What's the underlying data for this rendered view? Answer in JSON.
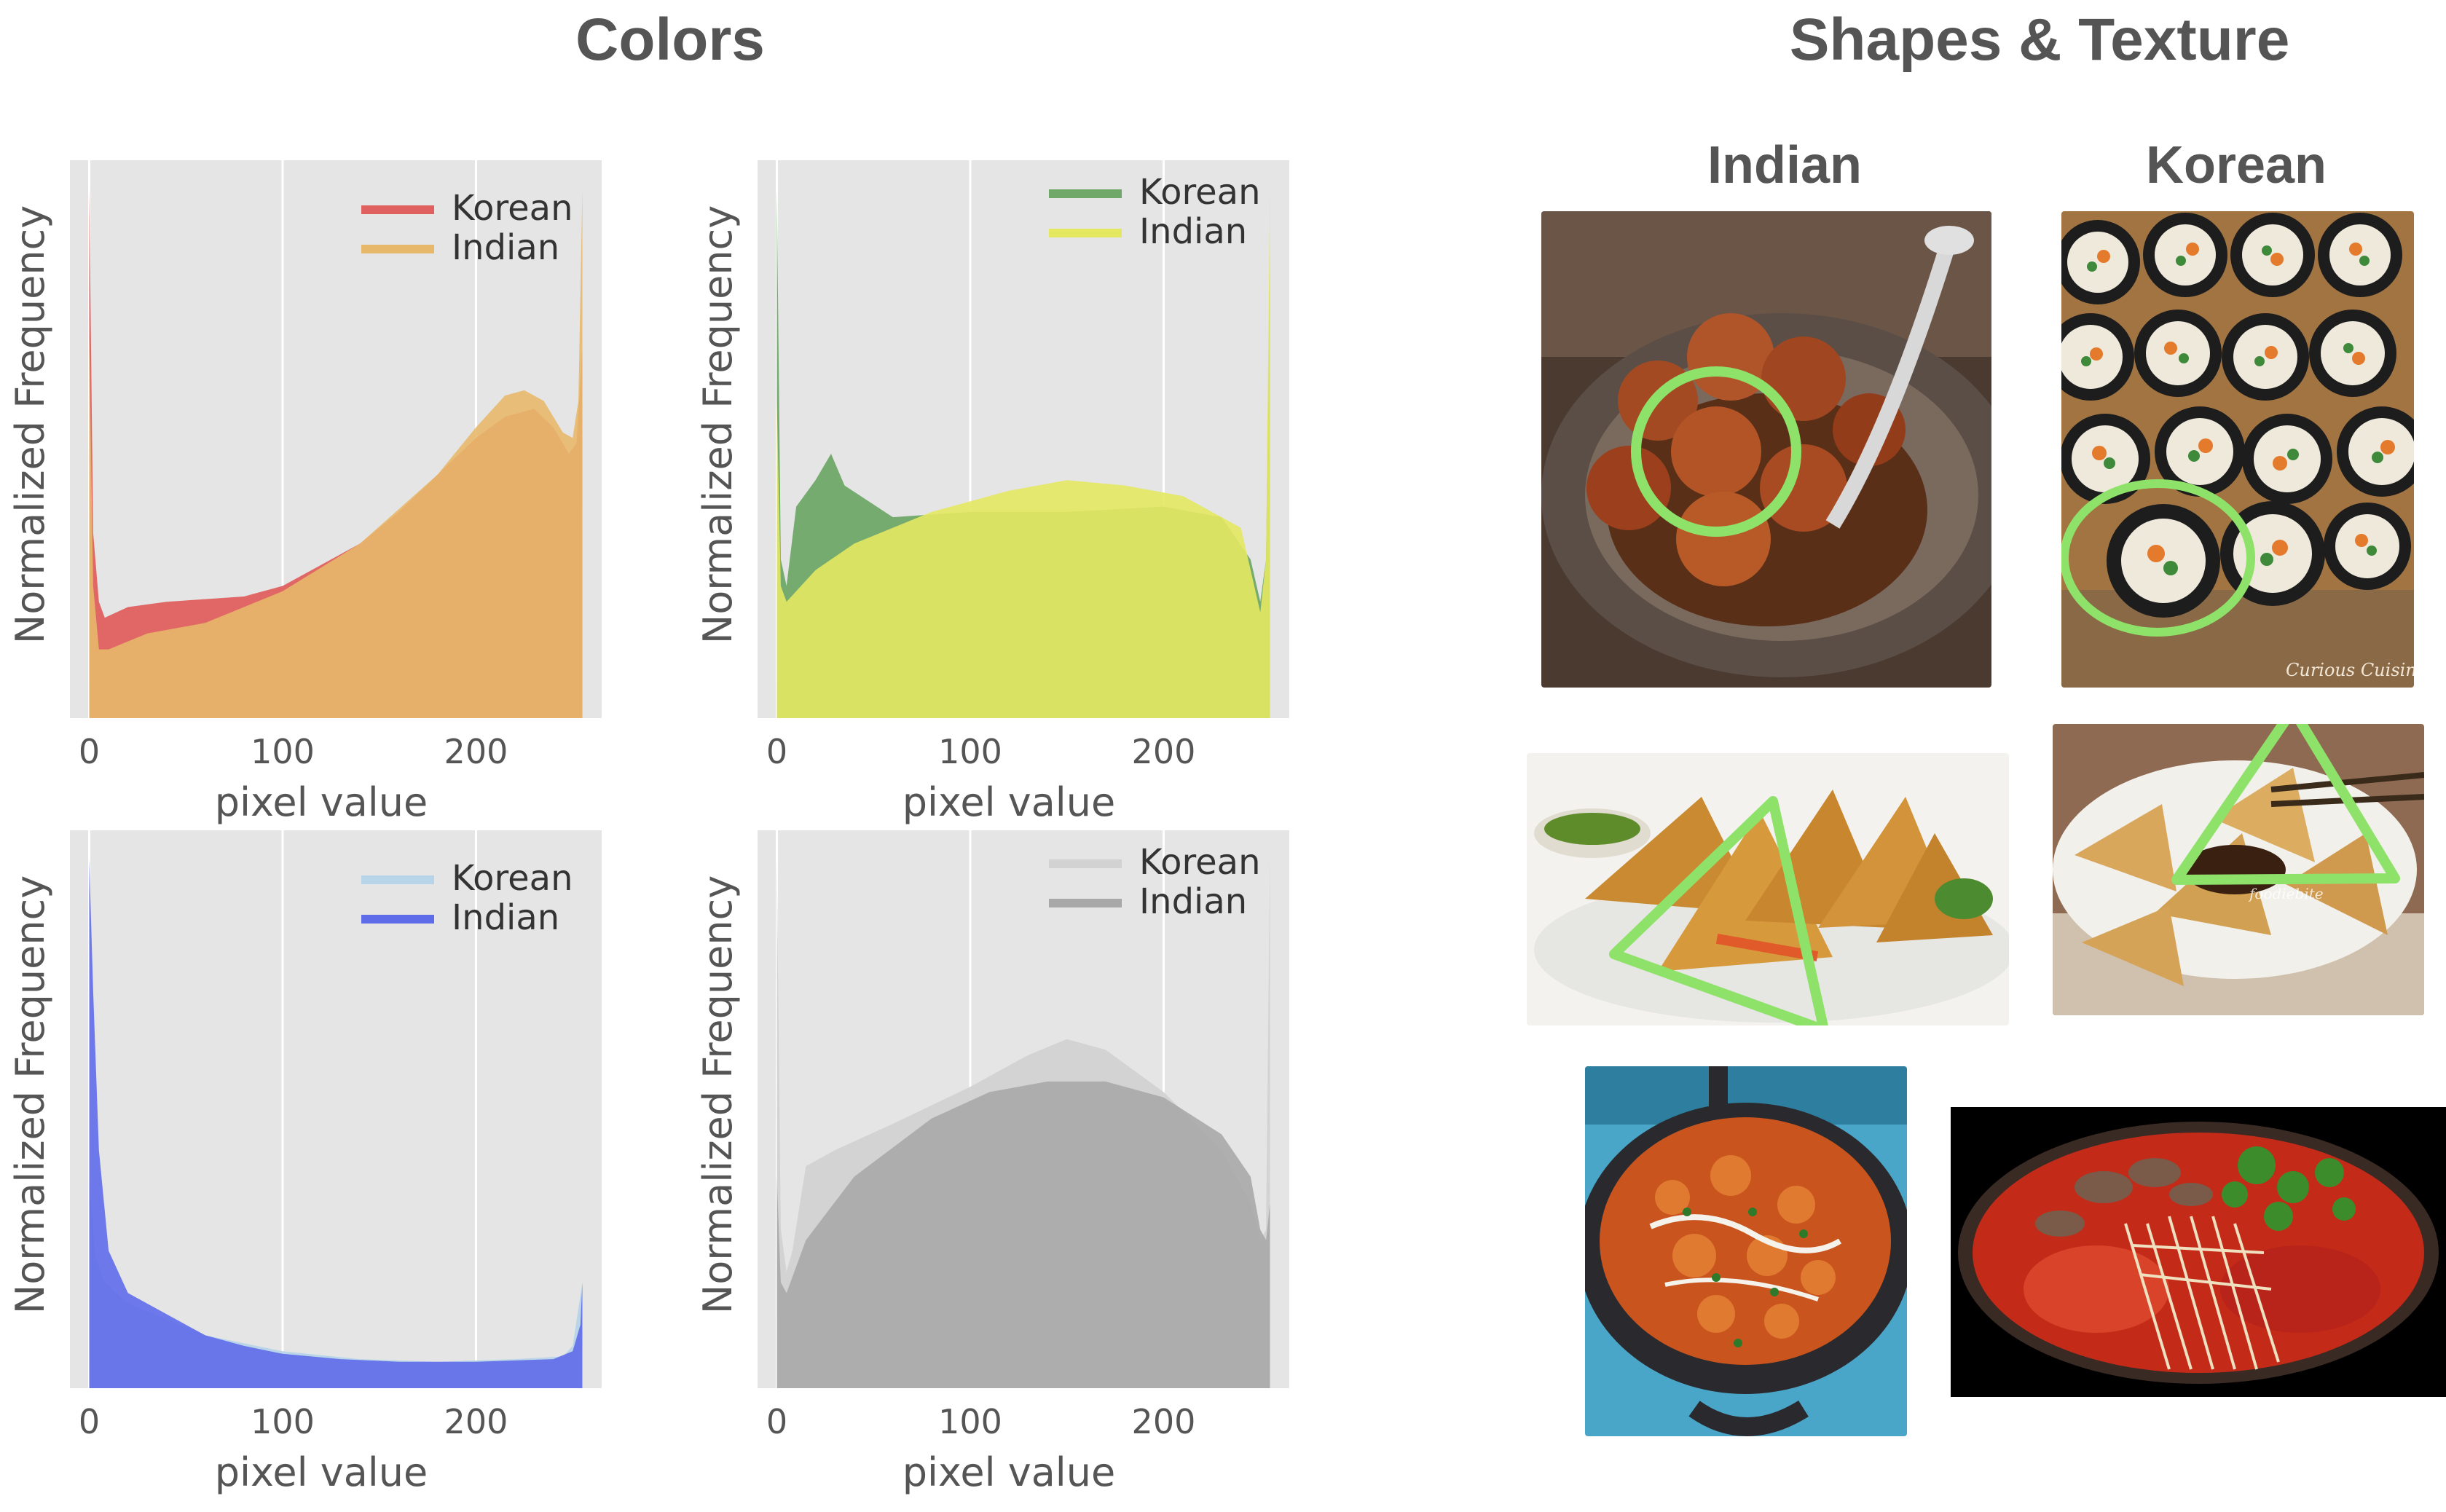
{
  "titles": {
    "colors": "Colors",
    "shapes": "Shapes & Texture",
    "indian": "Indian",
    "korean": "Korean"
  },
  "photo_credits": {
    "kimbap": "Curious Cuisiniere",
    "pajeon": "foodiebite"
  },
  "chart_data": [
    {
      "id": "red",
      "type": "area",
      "xlabel": "pixel value",
      "ylabel": "Normalized Frequency",
      "xlim": [
        -10,
        265
      ],
      "xticks": [
        0,
        100,
        200
      ],
      "grid": true,
      "legend_position": "top-right",
      "series": [
        {
          "name": "Korean",
          "color": "#e06060",
          "points": [
            [
              0,
              1.0
            ],
            [
              2,
              0.35
            ],
            [
              5,
              0.22
            ],
            [
              8,
              0.19
            ],
            [
              20,
              0.21
            ],
            [
              40,
              0.22
            ],
            [
              60,
              0.225
            ],
            [
              80,
              0.23
            ],
            [
              100,
              0.25
            ],
            [
              120,
              0.29
            ],
            [
              140,
              0.33
            ],
            [
              160,
              0.39
            ],
            [
              180,
              0.46
            ],
            [
              200,
              0.53
            ],
            [
              215,
              0.57
            ],
            [
              230,
              0.585
            ],
            [
              240,
              0.55
            ],
            [
              248,
              0.5
            ],
            [
              252,
              0.52
            ],
            [
              255,
              0.7
            ]
          ]
        },
        {
          "name": "Indian",
          "color": "#e8b86a",
          "points": [
            [
              0,
              0.72
            ],
            [
              2,
              0.25
            ],
            [
              5,
              0.13
            ],
            [
              10,
              0.13
            ],
            [
              30,
              0.16
            ],
            [
              60,
              0.18
            ],
            [
              100,
              0.24
            ],
            [
              140,
              0.33
            ],
            [
              180,
              0.46
            ],
            [
              200,
              0.55
            ],
            [
              215,
              0.61
            ],
            [
              225,
              0.62
            ],
            [
              235,
              0.6
            ],
            [
              245,
              0.54
            ],
            [
              250,
              0.53
            ],
            [
              253,
              0.6
            ],
            [
              255,
              1.0
            ]
          ]
        }
      ]
    },
    {
      "id": "green",
      "type": "area",
      "xlabel": "pixel value",
      "ylabel": "Normalized Frequency",
      "xlim": [
        -10,
        265
      ],
      "xticks": [
        0,
        100,
        200
      ],
      "grid": true,
      "legend_position": "top-right",
      "series": [
        {
          "name": "Korean",
          "color": "#6fa868",
          "points": [
            [
              0,
              1.0
            ],
            [
              2,
              0.3
            ],
            [
              5,
              0.25
            ],
            [
              10,
              0.4
            ],
            [
              20,
              0.45
            ],
            [
              28,
              0.5
            ],
            [
              35,
              0.44
            ],
            [
              60,
              0.38
            ],
            [
              100,
              0.39
            ],
            [
              150,
              0.39
            ],
            [
              200,
              0.4
            ],
            [
              230,
              0.38
            ],
            [
              245,
              0.3
            ],
            [
              250,
              0.22
            ],
            [
              253,
              0.3
            ],
            [
              255,
              0.9
            ]
          ]
        },
        {
          "name": "Indian",
          "color": "#e4e860",
          "points": [
            [
              0,
              0.6
            ],
            [
              2,
              0.25
            ],
            [
              5,
              0.22
            ],
            [
              20,
              0.28
            ],
            [
              40,
              0.33
            ],
            [
              80,
              0.39
            ],
            [
              120,
              0.43
            ],
            [
              150,
              0.45
            ],
            [
              180,
              0.44
            ],
            [
              210,
              0.42
            ],
            [
              240,
              0.36
            ],
            [
              250,
              0.2
            ],
            [
              253,
              0.3
            ],
            [
              255,
              1.0
            ]
          ]
        }
      ]
    },
    {
      "id": "blue",
      "type": "area",
      "xlabel": "pixel value",
      "ylabel": "Normalized Frequency",
      "xlim": [
        -10,
        265
      ],
      "xticks": [
        0,
        100,
        200
      ],
      "grid": true,
      "legend_position": "top-right",
      "series": [
        {
          "name": "Korean",
          "color": "#b8d4e8",
          "points": [
            [
              0,
              0.4
            ],
            [
              3,
              0.25
            ],
            [
              8,
              0.2
            ],
            [
              20,
              0.16
            ],
            [
              60,
              0.1
            ],
            [
              100,
              0.07
            ],
            [
              140,
              0.055
            ],
            [
              180,
              0.05
            ],
            [
              220,
              0.055
            ],
            [
              245,
              0.06
            ],
            [
              250,
              0.08
            ],
            [
              255,
              0.2
            ]
          ]
        },
        {
          "name": "Indian",
          "color": "#5f6cea",
          "points": [
            [
              0,
              1.0
            ],
            [
              2,
              0.75
            ],
            [
              5,
              0.45
            ],
            [
              10,
              0.26
            ],
            [
              20,
              0.18
            ],
            [
              40,
              0.14
            ],
            [
              60,
              0.1
            ],
            [
              80,
              0.08
            ],
            [
              100,
              0.065
            ],
            [
              130,
              0.055
            ],
            [
              160,
              0.05
            ],
            [
              200,
              0.05
            ],
            [
              240,
              0.055
            ],
            [
              250,
              0.07
            ],
            [
              254,
              0.12
            ],
            [
              255,
              0.2
            ]
          ]
        }
      ]
    },
    {
      "id": "gray",
      "type": "area",
      "xlabel": "pixel value",
      "ylabel": "Normalized Frequency",
      "xlim": [
        -10,
        265
      ],
      "xticks": [
        0,
        100,
        200
      ],
      "grid": true,
      "legend_position": "top-right",
      "series": [
        {
          "name": "Korean",
          "color": "#d2d2d2",
          "points": [
            [
              0,
              1.0
            ],
            [
              2,
              0.3
            ],
            [
              5,
              0.22
            ],
            [
              8,
              0.26
            ],
            [
              15,
              0.42
            ],
            [
              30,
              0.45
            ],
            [
              60,
              0.5
            ],
            [
              100,
              0.57
            ],
            [
              130,
              0.63
            ],
            [
              150,
              0.66
            ],
            [
              170,
              0.64
            ],
            [
              200,
              0.56
            ],
            [
              230,
              0.45
            ],
            [
              245,
              0.35
            ],
            [
              250,
              0.28
            ],
            [
              253,
              0.3
            ],
            [
              255,
              1.0
            ]
          ]
        },
        {
          "name": "Indian",
          "color": "#a8a8a8",
          "points": [
            [
              0,
              0.4
            ],
            [
              2,
              0.2
            ],
            [
              5,
              0.18
            ],
            [
              15,
              0.28
            ],
            [
              40,
              0.4
            ],
            [
              80,
              0.51
            ],
            [
              110,
              0.56
            ],
            [
              140,
              0.58
            ],
            [
              170,
              0.58
            ],
            [
              200,
              0.55
            ],
            [
              230,
              0.48
            ],
            [
              245,
              0.4
            ],
            [
              250,
              0.3
            ],
            [
              253,
              0.28
            ],
            [
              255,
              0.35
            ]
          ]
        }
      ]
    }
  ]
}
